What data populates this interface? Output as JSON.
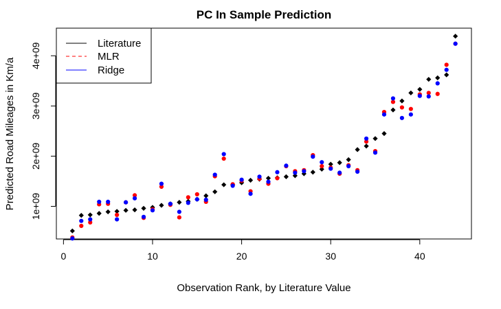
{
  "chart_data": {
    "type": "scatter",
    "title": "PC In Sample Prediction",
    "xlabel": "Observation Rank, by Literature Value",
    "ylabel": "Predicted Road Mileages in Km/a",
    "xlim": [
      -0.8,
      45.8
    ],
    "ylim": [
      350000000,
      4550000000
    ],
    "x_ticks": [
      0,
      10,
      20,
      30,
      40
    ],
    "x_tick_labels": [
      "0",
      "10",
      "20",
      "30",
      "40"
    ],
    "y_ticks": [
      1000000000,
      2000000000,
      3000000000,
      4000000000
    ],
    "y_tick_labels": [
      "1e+09",
      "2e+09",
      "3e+09",
      "4e+09"
    ],
    "grid": false,
    "legend_position": "top-left",
    "legend": [
      {
        "label": "Literature",
        "color": "#000000",
        "line": "solid"
      },
      {
        "label": "MLR",
        "color": "#ff0000",
        "line": "dashed"
      },
      {
        "label": "Ridge",
        "color": "#0000ff",
        "line": "solid"
      }
    ],
    "x": [
      1,
      2,
      3,
      4,
      5,
      6,
      7,
      8,
      9,
      10,
      11,
      12,
      13,
      14,
      15,
      16,
      17,
      18,
      19,
      20,
      21,
      22,
      23,
      24,
      25,
      26,
      27,
      28,
      29,
      30,
      31,
      32,
      33,
      34,
      35,
      36,
      37,
      38,
      39,
      40,
      41,
      42,
      43,
      44
    ],
    "series": [
      {
        "name": "Literature",
        "color": "#000000",
        "marker": "diamond",
        "values": [
          510000000,
          820000000,
          830000000,
          860000000,
          890000000,
          900000000,
          920000000,
          930000000,
          960000000,
          980000000,
          1020000000,
          1050000000,
          1080000000,
          1100000000,
          1140000000,
          1210000000,
          1290000000,
          1430000000,
          1430000000,
          1470000000,
          1520000000,
          1540000000,
          1560000000,
          1570000000,
          1590000000,
          1610000000,
          1650000000,
          1680000000,
          1740000000,
          1840000000,
          1870000000,
          1930000000,
          2130000000,
          2200000000,
          2350000000,
          2450000000,
          2920000000,
          3100000000,
          3260000000,
          3330000000,
          3530000000,
          3560000000,
          3620000000,
          4390000000
        ]
      },
      {
        "name": "MLR",
        "color": "#ff0000",
        "marker": "circle",
        "values": [
          380000000,
          610000000,
          680000000,
          1040000000,
          1050000000,
          830000000,
          1080000000,
          1220000000,
          770000000,
          940000000,
          1390000000,
          1030000000,
          780000000,
          1180000000,
          1240000000,
          1090000000,
          1600000000,
          1950000000,
          1440000000,
          1510000000,
          1300000000,
          1550000000,
          1450000000,
          1560000000,
          1800000000,
          1700000000,
          1720000000,
          2020000000,
          1800000000,
          1770000000,
          1650000000,
          1820000000,
          1720000000,
          2290000000,
          2100000000,
          2880000000,
          3080000000,
          2970000000,
          2940000000,
          3230000000,
          3260000000,
          3240000000,
          3820000000,
          4240000000
        ]
      },
      {
        "name": "Ridge",
        "color": "#0000ff",
        "marker": "circle",
        "values": [
          360000000,
          710000000,
          740000000,
          1090000000,
          1090000000,
          740000000,
          1080000000,
          1160000000,
          790000000,
          920000000,
          1450000000,
          1050000000,
          890000000,
          1070000000,
          1140000000,
          1130000000,
          1630000000,
          2040000000,
          1410000000,
          1530000000,
          1250000000,
          1590000000,
          1490000000,
          1680000000,
          1810000000,
          1670000000,
          1700000000,
          1990000000,
          1880000000,
          1750000000,
          1670000000,
          1800000000,
          1690000000,
          2350000000,
          2070000000,
          2830000000,
          3150000000,
          2760000000,
          2830000000,
          3200000000,
          3190000000,
          3450000000,
          3720000000,
          4240000000
        ]
      }
    ]
  }
}
